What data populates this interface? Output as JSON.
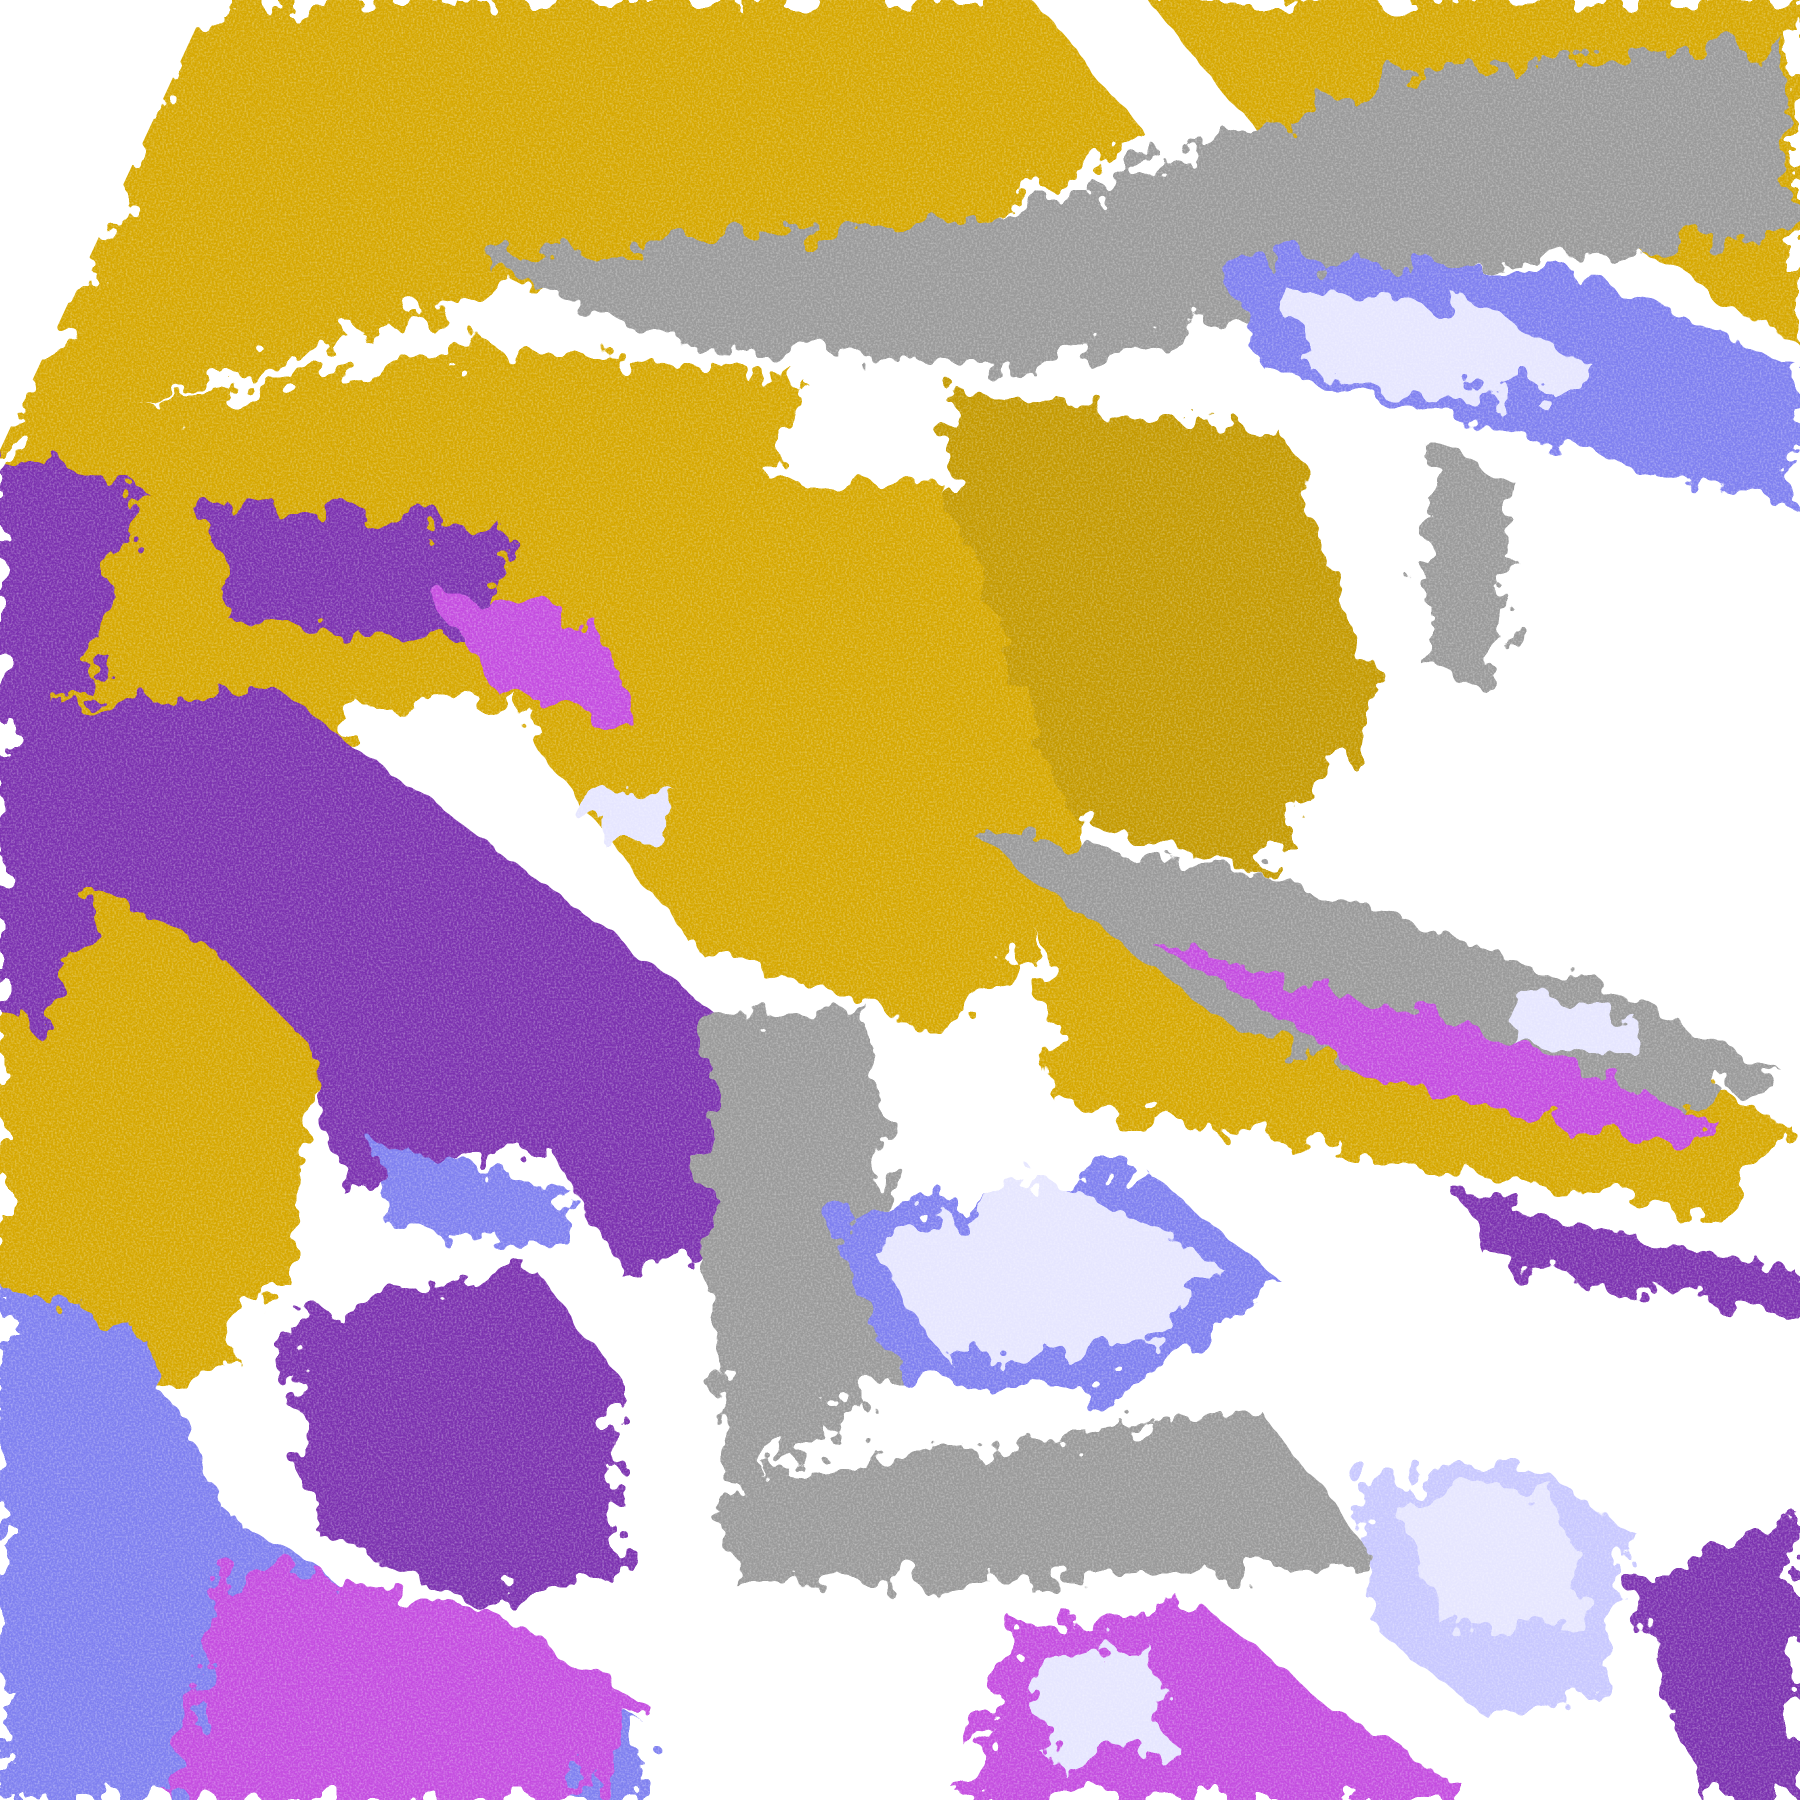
{
  "image": {
    "kind": "false-color satellite cloud imagery",
    "palette": {
      "background": "#ffffff",
      "gold": "#d6a800",
      "dark_gold": "#c49a00",
      "purple": "#7c32b0",
      "magenta": "#c44ee0",
      "periwinkle": "#7f80f0",
      "lavender": "#e6e6ff",
      "light_lavender": "#c8c8ff",
      "gray": "#9a9a9a"
    }
  }
}
